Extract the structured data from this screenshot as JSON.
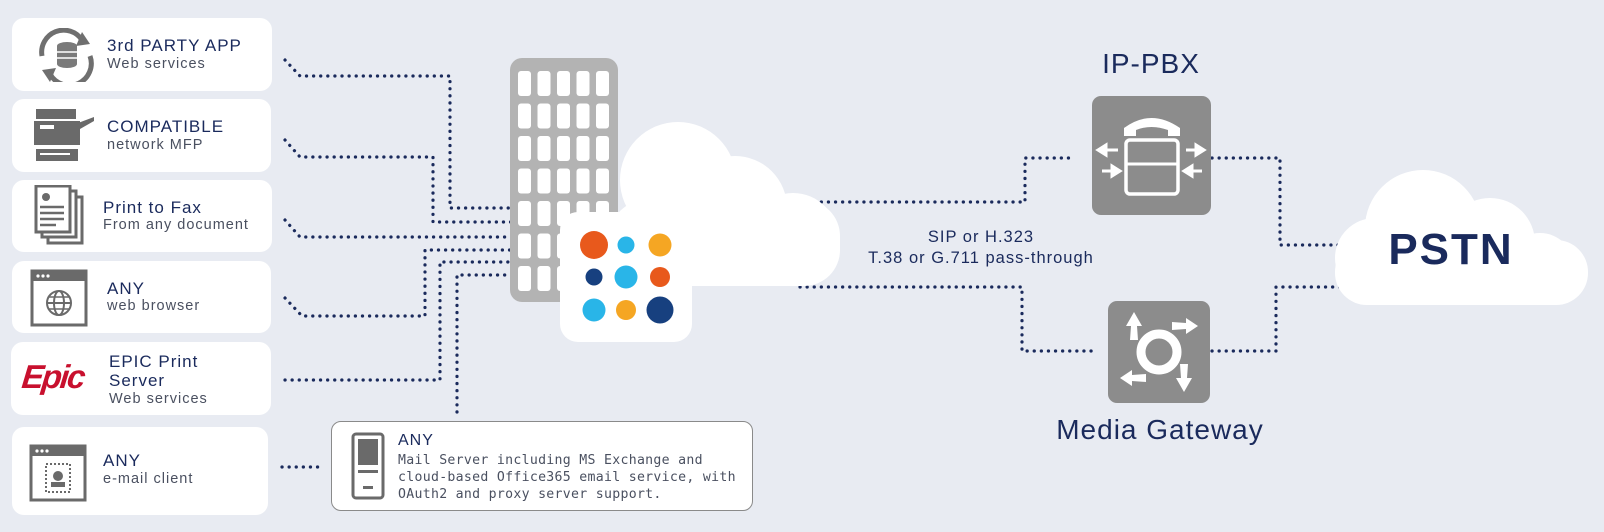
{
  "sources": [
    {
      "id": "3rd-party-app",
      "title": "3rd PARTY APP",
      "subtitle": "Web services",
      "icon": "sync-database-icon"
    },
    {
      "id": "compatible-mfp",
      "title": "COMPATIBLE",
      "subtitle": "network MFP",
      "icon": "printer-mfp-icon"
    },
    {
      "id": "print-to-fax",
      "title": "Print to Fax",
      "subtitle": "From any document",
      "icon": "documents-icon"
    },
    {
      "id": "web-browser",
      "title": "ANY",
      "subtitle": "web browser",
      "icon": "web-browser-icon"
    },
    {
      "id": "epic-print-server",
      "title_line1": "EPIC Print",
      "title_line2": "Server",
      "subtitle": "Web services",
      "logo_text": "Epic",
      "icon": "epic-logo"
    },
    {
      "id": "email-client",
      "title": "ANY",
      "subtitle": "e-mail client",
      "icon": "email-window-icon"
    }
  ],
  "mail_server": {
    "title": "ANY",
    "description": "Mail Server including MS Exchange and cloud-based Office365 email service, with OAuth2 and proxy server support.",
    "icon": "server-tower-icon"
  },
  "protocol": {
    "line1": "SIP or H.323",
    "line2": "T.38 or G.711 pass-through"
  },
  "ip_pbx": {
    "label": "IP-PBX",
    "icon": "pbx-phone-icon"
  },
  "media_gateway": {
    "label": "Media Gateway",
    "icon": "gateway-arrows-icon"
  },
  "pstn": {
    "label": "PSTN",
    "icon": "cloud-icon"
  },
  "colors": {
    "background": "#e8ebf2",
    "navy": "#1a2a5c",
    "dots": "#1a2a5c",
    "building": "#b3b3b3",
    "device_gray": "#8c8c8c",
    "epic_red": "#c8102e",
    "orange": "#e8591c",
    "light_blue": "#29b5e8",
    "amber": "#f5a623",
    "dark_blue": "#17407f"
  }
}
